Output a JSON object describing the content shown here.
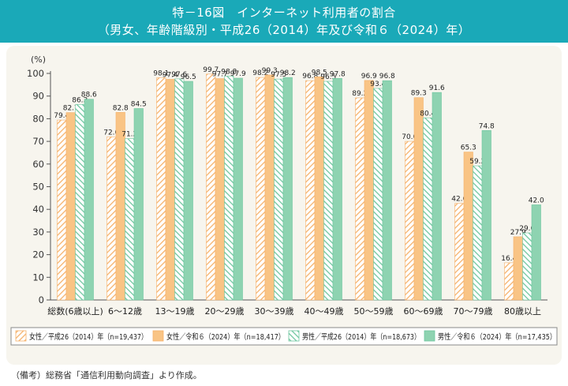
{
  "header": {
    "title_line1": "特－16図　インターネット利用者の割合",
    "title_line2": "（男女、年齢階級別・平成26（2014）年及び令和６（2024）年）"
  },
  "note": "（備考）総務省「通信利用動向調査」より作成。",
  "chart_data": {
    "type": "bar",
    "ylabel": "(%)",
    "ylim": [
      0,
      100
    ],
    "yticks": [
      0,
      10,
      20,
      30,
      40,
      50,
      60,
      70,
      80,
      90,
      100
    ],
    "grid": false,
    "legend_position": "bottom",
    "categories": [
      "総数(6歳以上)",
      "6～12歳",
      "13～19歳",
      "20～29歳",
      "30～39歳",
      "40～49歳",
      "50～59歳",
      "60～69歳",
      "70～79歳",
      "80歳以上"
    ],
    "series": [
      {
        "name": "女性／平成26（2014）年（n=19,437）",
        "color": "#f6b26b",
        "pattern": "hatch",
        "values": [
          79.4,
          72.0,
          98.1,
          99.7,
          98.2,
          96.8,
          89.2,
          70.0,
          42.6,
          16.4
        ]
      },
      {
        "name": "女性／令和６（2024）年（n=18,417）",
        "color": "#f9c485",
        "pattern": "solid",
        "values": [
          82.7,
          82.8,
          97.4,
          97.7,
          99.3,
          98.5,
          96.9,
          89.3,
          65.3,
          27.9
        ]
      },
      {
        "name": "男性／平成26（2014）年（n=18,673）",
        "color": "#6fc7a0",
        "pattern": "hatch",
        "values": [
          86.3,
          71.2,
          97.6,
          98.8,
          97.5,
          96.5,
          93.4,
          80.4,
          59.2,
          29.6
        ]
      },
      {
        "name": "男性／令和６（2024）年（n=17,435）",
        "color": "#8ed3b1",
        "pattern": "solid",
        "values": [
          88.6,
          84.5,
          96.5,
          97.9,
          98.2,
          97.8,
          96.8,
          91.6,
          74.8,
          42.0
        ]
      }
    ]
  }
}
